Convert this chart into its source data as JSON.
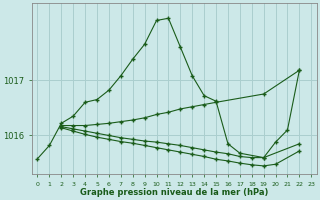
{
  "title": "Graphe pression niveau de la mer (hPa)",
  "background_color": "#cce8e8",
  "line_color": "#1a5c1a",
  "grid_color": "#aacece",
  "xlim": [
    -0.5,
    23.5
  ],
  "ylim": [
    1015.3,
    1018.4
  ],
  "yticks": [
    1016,
    1017
  ],
  "xticks": [
    0,
    1,
    2,
    3,
    4,
    5,
    6,
    7,
    8,
    9,
    10,
    11,
    12,
    13,
    14,
    15,
    16,
    17,
    18,
    19,
    20,
    21,
    22,
    23
  ],
  "series1_x": [
    0,
    1,
    2,
    3,
    4,
    5,
    6,
    7,
    8,
    9,
    10,
    11,
    12,
    13,
    14,
    15,
    16,
    17,
    19,
    20,
    21,
    22
  ],
  "series1_y": [
    1015.58,
    1015.82,
    1016.22,
    1016.35,
    1016.6,
    1016.65,
    1016.82,
    1017.08,
    1017.38,
    1017.65,
    1018.08,
    1018.12,
    1017.6,
    1017.08,
    1016.72,
    1016.62,
    1015.85,
    1015.68,
    1015.6,
    1015.88,
    1016.1,
    1017.18
  ],
  "series2_x": [
    2,
    3,
    4,
    5,
    6,
    7,
    8,
    9,
    10,
    11,
    12,
    13,
    14,
    15,
    19,
    22
  ],
  "series2_y": [
    1016.18,
    1016.18,
    1016.18,
    1016.2,
    1016.22,
    1016.25,
    1016.28,
    1016.32,
    1016.38,
    1016.42,
    1016.48,
    1016.52,
    1016.56,
    1016.6,
    1016.75,
    1017.18
  ],
  "series3_x": [
    2,
    3,
    4,
    5,
    6,
    7,
    8,
    9,
    10,
    11,
    12,
    13,
    14,
    15,
    16,
    17,
    18,
    19,
    22
  ],
  "series3_y": [
    1016.16,
    1016.12,
    1016.08,
    1016.04,
    1016.0,
    1015.96,
    1015.93,
    1015.9,
    1015.88,
    1015.85,
    1015.82,
    1015.78,
    1015.74,
    1015.7,
    1015.67,
    1015.62,
    1015.6,
    1015.6,
    1015.85
  ],
  "series4_x": [
    2,
    3,
    4,
    5,
    6,
    7,
    8,
    9,
    10,
    11,
    12,
    13,
    14,
    15,
    16,
    17,
    18,
    19,
    20,
    22
  ],
  "series4_y": [
    1016.14,
    1016.08,
    1016.02,
    1015.97,
    1015.93,
    1015.89,
    1015.86,
    1015.82,
    1015.78,
    1015.74,
    1015.7,
    1015.66,
    1015.62,
    1015.57,
    1015.54,
    1015.5,
    1015.47,
    1015.45,
    1015.48,
    1015.72
  ]
}
